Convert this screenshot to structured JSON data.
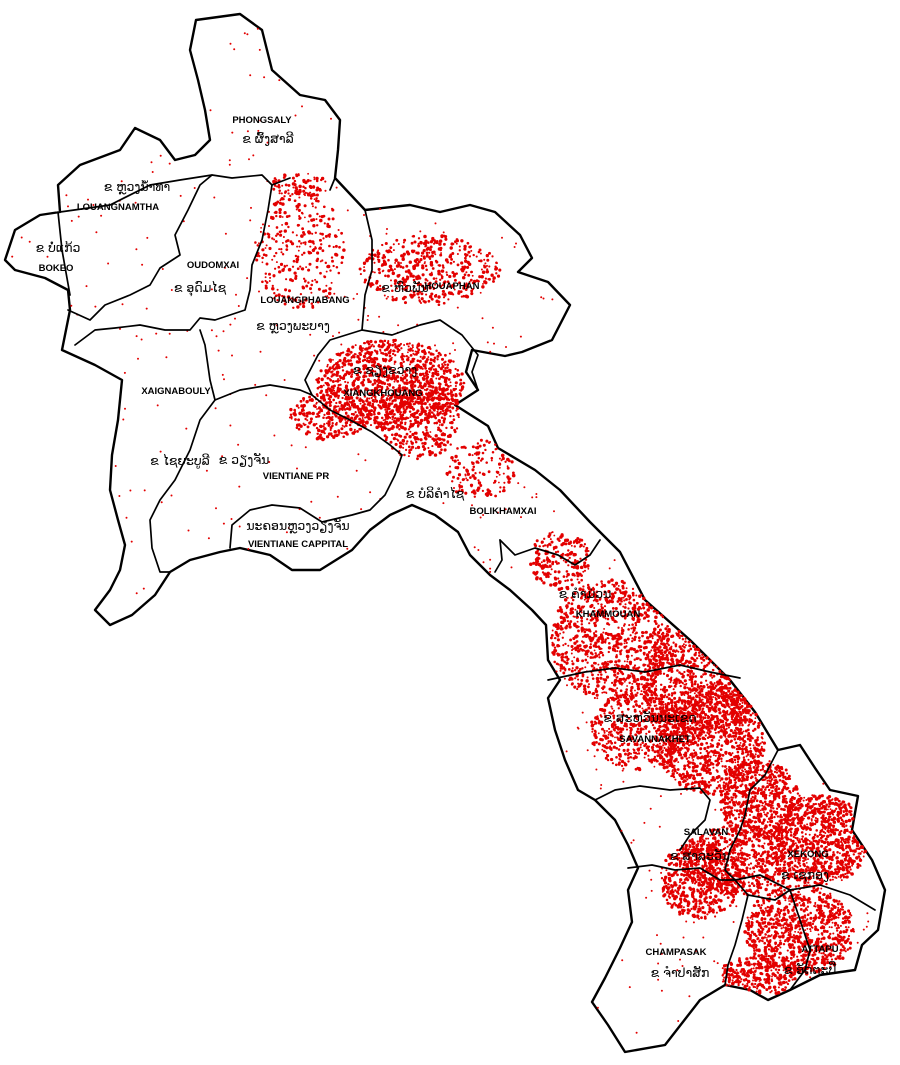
{
  "map": {
    "dot_color": "#e30000",
    "border_color": "#000000",
    "background": "#ffffff"
  },
  "provinces": [
    {
      "key": "phongsaly",
      "name_en": "PHONGSALY",
      "name_lo": "ຂ ຜົ້ງສາລີ"
    },
    {
      "key": "louangnamtha",
      "name_en": "LOUANGNAMTHA",
      "name_lo": "ຂ ຫຼວງນ້ຳທາ"
    },
    {
      "key": "bokeo",
      "name_en": "BOKEO",
      "name_lo": "ຂ ບໍ່ແກ້ວ"
    },
    {
      "key": "oudomxai",
      "name_en": "OUDOMXAI",
      "name_lo": "ຂ ອຸດົມໄຊ"
    },
    {
      "key": "louangphabang",
      "name_en": "LOUANGPHABANG",
      "name_lo": "ຂ ຫຼວງພະບາງ"
    },
    {
      "key": "houaphan",
      "name_en": "HOUAPHAN",
      "name_lo": "ຂ ຫົວພັນ"
    },
    {
      "key": "xaignabouly",
      "name_en": "XAIGNABOULY",
      "name_lo": "ຂ ໄຊຍະບູລີ"
    },
    {
      "key": "xiangkhouang",
      "name_en": "XIANGKHOUANG",
      "name_lo": "ຂ ຊຽງຂວາງ"
    },
    {
      "key": "vientiane_pr",
      "name_en": "VIENTIANE PR",
      "name_lo": "ຂ ວຽງຈັນ"
    },
    {
      "key": "vientiane_cap",
      "name_en": "VIENTIANE CAPPITAL",
      "name_lo": "ນະຄອນຫຼວງວຽງຈັນ"
    },
    {
      "key": "bolikhamxai",
      "name_en": "BOLIKHAMXAI",
      "name_lo": "ຂ ບໍລິຄຳໄຊ"
    },
    {
      "key": "khammouan",
      "name_en": "KHAMMOUAN",
      "name_lo": "ຂ ຄຳມ່ວນ"
    },
    {
      "key": "savannakhet",
      "name_en": "SAVANNAKHET",
      "name_lo": "ຂ ສະຫວັນນະເຂດ"
    },
    {
      "key": "salavan",
      "name_en": "SALAVAN",
      "name_lo": "ຂ ສາລະວັນ"
    },
    {
      "key": "xekong",
      "name_en": "XEKONG",
      "name_lo": "ຂ ເຊກອງ"
    },
    {
      "key": "champasak",
      "name_en": "CHAMPASAK",
      "name_lo": "ຂ ຈຳປາສັກ"
    },
    {
      "key": "attapu",
      "name_en": "ATTAPU",
      "name_lo": "ຂ ອັດຕະປື"
    }
  ]
}
